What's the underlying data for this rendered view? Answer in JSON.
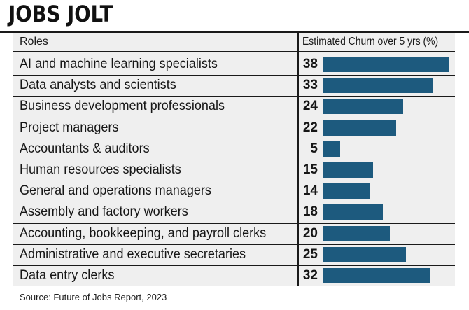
{
  "header": {
    "title": "JOBS JOLT"
  },
  "table": {
    "col_roles": "Roles",
    "col_metric": "Estimated Churn over 5 yrs (%)"
  },
  "footer": {
    "source": "Source: Future of Jobs Report, 2023"
  },
  "colors": {
    "bar": "#1d5a7e",
    "background": "#efefef",
    "rule": "#1a1a1a"
  },
  "chart_data": {
    "type": "bar",
    "orientation": "horizontal",
    "title": "JOBS JOLT",
    "xlabel": "Estimated Churn over 5 yrs (%)",
    "ylabel": "Roles",
    "xlim": [
      0,
      38
    ],
    "grid": false,
    "data_labels": true,
    "categories": [
      "AI and machine learning specialists",
      "Data analysts and scientists",
      "Business development professionals",
      "Project managers",
      "Accountants & auditors",
      "Human resources specialists",
      "General and operations managers",
      "Assembly and factory workers",
      "Accounting, bookkeeping, and payroll clerks",
      "Administrative and executive secretaries",
      "Data entry clerks"
    ],
    "values": [
      38,
      33,
      24,
      22,
      5,
      15,
      14,
      18,
      20,
      25,
      32
    ]
  }
}
